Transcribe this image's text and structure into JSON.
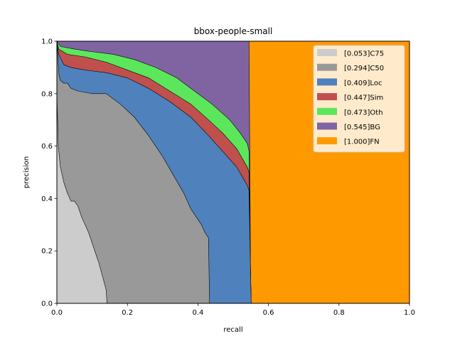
{
  "chart_data": {
    "type": "area",
    "title": "bbox-people-small",
    "xlabel": "recall",
    "ylabel": "precision",
    "xlim": [
      0,
      1
    ],
    "ylim": [
      0,
      1
    ],
    "xticks": [
      "0.0",
      "0.2",
      "0.4",
      "0.6",
      "0.8",
      "1.0"
    ],
    "yticks": [
      "0.0",
      "0.2",
      "0.4",
      "0.6",
      "0.8",
      "1.0"
    ],
    "legend_position": "top-right",
    "series": [
      {
        "name": "[0.053]C75",
        "color": "#cccccc",
        "points": [
          [
            0,
            0.8
          ],
          [
            0.004,
            0.6
          ],
          [
            0.01,
            0.52
          ],
          [
            0.02,
            0.46
          ],
          [
            0.03,
            0.42
          ],
          [
            0.04,
            0.39
          ],
          [
            0.05,
            0.39
          ],
          [
            0.06,
            0.37
          ],
          [
            0.07,
            0.33
          ],
          [
            0.08,
            0.3
          ],
          [
            0.09,
            0.27
          ],
          [
            0.1,
            0.23
          ],
          [
            0.11,
            0.19
          ],
          [
            0.12,
            0.15
          ],
          [
            0.13,
            0.1
          ],
          [
            0.14,
            0.05
          ],
          [
            0.142,
            0
          ]
        ]
      },
      {
        "name": "[0.294]C50",
        "color": "#999999",
        "points": [
          [
            0,
            1
          ],
          [
            0.003,
            0.93
          ],
          [
            0.006,
            0.87
          ],
          [
            0.01,
            0.85
          ],
          [
            0.02,
            0.84
          ],
          [
            0.03,
            0.84
          ],
          [
            0.04,
            0.82
          ],
          [
            0.06,
            0.81
          ],
          [
            0.1,
            0.8
          ],
          [
            0.14,
            0.8
          ],
          [
            0.18,
            0.76
          ],
          [
            0.22,
            0.71
          ],
          [
            0.26,
            0.64
          ],
          [
            0.3,
            0.56
          ],
          [
            0.33,
            0.49
          ],
          [
            0.36,
            0.42
          ],
          [
            0.38,
            0.36
          ],
          [
            0.41,
            0.3
          ],
          [
            0.42,
            0.27
          ],
          [
            0.43,
            0.25
          ],
          [
            0.433,
            0
          ]
        ]
      },
      {
        "name": "[0.409]Loc",
        "color": "#4f81bd",
        "points": [
          [
            0,
            1
          ],
          [
            0.005,
            0.95
          ],
          [
            0.02,
            0.91
          ],
          [
            0.04,
            0.9
          ],
          [
            0.08,
            0.89
          ],
          [
            0.14,
            0.88
          ],
          [
            0.2,
            0.86
          ],
          [
            0.26,
            0.82
          ],
          [
            0.32,
            0.77
          ],
          [
            0.38,
            0.71
          ],
          [
            0.43,
            0.64
          ],
          [
            0.47,
            0.58
          ],
          [
            0.51,
            0.52
          ],
          [
            0.54,
            0.45
          ],
          [
            0.545,
            0.43
          ],
          [
            0.549,
            0.13
          ],
          [
            0.551,
            0
          ]
        ]
      },
      {
        "name": "[0.447]Sim",
        "color": "#c0504d",
        "points": [
          [
            0,
            1
          ],
          [
            0.005,
            0.97
          ],
          [
            0.03,
            0.95
          ],
          [
            0.08,
            0.94
          ],
          [
            0.14,
            0.92
          ],
          [
            0.2,
            0.89
          ],
          [
            0.26,
            0.86
          ],
          [
            0.32,
            0.81
          ],
          [
            0.38,
            0.76
          ],
          [
            0.43,
            0.7
          ],
          [
            0.47,
            0.65
          ],
          [
            0.51,
            0.59
          ],
          [
            0.54,
            0.52
          ],
          [
            0.545,
            0.5
          ],
          [
            0.549,
            0.13
          ],
          [
            0.551,
            0
          ]
        ]
      },
      {
        "name": "[0.473]Oth",
        "color": "#5ce65c",
        "points": [
          [
            0,
            1
          ],
          [
            0.01,
            0.98
          ],
          [
            0.05,
            0.97
          ],
          [
            0.1,
            0.96
          ],
          [
            0.16,
            0.95
          ],
          [
            0.22,
            0.93
          ],
          [
            0.28,
            0.9
          ],
          [
            0.34,
            0.86
          ],
          [
            0.39,
            0.81
          ],
          [
            0.44,
            0.76
          ],
          [
            0.49,
            0.7
          ],
          [
            0.52,
            0.65
          ],
          [
            0.54,
            0.61
          ],
          [
            0.545,
            0.58
          ],
          [
            0.549,
            0.13
          ],
          [
            0.551,
            0
          ]
        ]
      },
      {
        "name": "[0.545]BG",
        "color": "#8064a2",
        "points": [
          [
            0,
            1
          ],
          [
            0.545,
            1
          ],
          [
            0.549,
            0.13
          ],
          [
            0.551,
            0
          ]
        ]
      },
      {
        "name": "[1.000]FN",
        "color": "#ff9900",
        "points": [
          [
            0,
            1
          ],
          [
            1,
            1
          ],
          [
            1,
            0
          ]
        ]
      }
    ]
  }
}
